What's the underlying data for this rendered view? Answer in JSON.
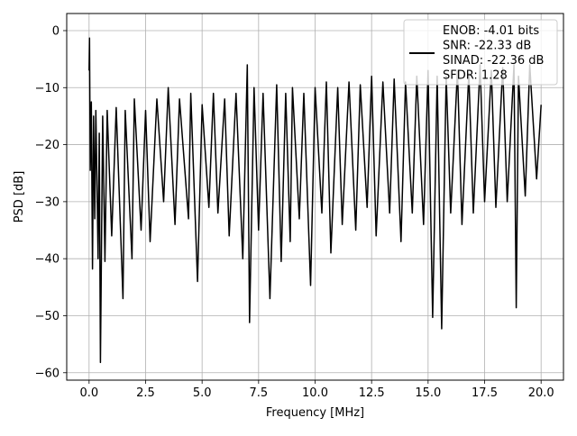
{
  "chart_data": {
    "type": "line",
    "title": "",
    "xlabel": "Frequency [MHz]",
    "ylabel": "PSD [dB]",
    "xlim": [
      -0.99,
      20.99
    ],
    "ylim": [
      -61.3,
      3.0
    ],
    "xticks": [
      0.0,
      2.5,
      5.0,
      7.5,
      10.0,
      12.5,
      15.0,
      17.5,
      20.0
    ],
    "xtick_labels": [
      "0.0",
      "2.5",
      "5.0",
      "7.5",
      "10.0",
      "12.5",
      "15.0",
      "17.5",
      "20.0"
    ],
    "yticks": [
      0,
      -10,
      -20,
      -30,
      -40,
      -50,
      -60
    ],
    "ytick_labels": [
      "0",
      "−10",
      "−20",
      "−30",
      "−40",
      "−50",
      "−60"
    ],
    "grid": true,
    "legend_position": "top-right",
    "legend_lines": [
      "ENOB: -4.01 bits",
      "SNR: -22.33 dB",
      "SINAD: -22.36 dB",
      "SFDR: 1.28"
    ],
    "series": [
      {
        "color": "#000000",
        "description": "noisy power spectral density, approx. 0-20 MHz",
        "x": [
          0.0,
          0.02,
          0.05,
          0.1,
          0.15,
          0.2,
          0.25,
          0.3,
          0.35,
          0.4,
          0.45,
          0.5,
          0.6,
          0.7,
          0.8,
          1.0,
          1.2,
          1.5,
          1.6,
          1.9,
          2.0,
          2.3,
          2.5,
          2.7,
          3.0,
          3.3,
          3.5,
          3.8,
          4.0,
          4.4,
          4.5,
          4.8,
          5.0,
          5.3,
          5.5,
          5.7,
          6.0,
          6.2,
          6.5,
          6.8,
          7.0,
          7.1,
          7.3,
          7.5,
          7.7,
          8.0,
          8.3,
          8.5,
          8.7,
          8.9,
          9.0,
          9.3,
          9.5,
          9.8,
          10.0,
          10.3,
          10.5,
          10.7,
          11.0,
          11.2,
          11.5,
          11.8,
          12.0,
          12.3,
          12.5,
          12.7,
          13.0,
          13.3,
          13.5,
          13.8,
          14.0,
          14.3,
          14.5,
          14.8,
          15.0,
          15.2,
          15.4,
          15.6,
          15.8,
          16.0,
          16.3,
          16.5,
          16.8,
          17.0,
          17.3,
          17.5,
          17.8,
          18.0,
          18.3,
          18.5,
          18.8,
          18.9,
          19.0,
          19.3,
          19.5,
          19.8,
          20.0
        ],
        "y": [
          -7.0,
          -1.3,
          -24.5,
          -12.5,
          -41.8,
          -15.0,
          -33.0,
          -14.0,
          -27.0,
          -40.0,
          -18.0,
          -58.2,
          -15.0,
          -40.5,
          -14.0,
          -36.0,
          -13.5,
          -47.0,
          -14.0,
          -40.0,
          -12.0,
          -35.0,
          -14.0,
          -37.0,
          -12.0,
          -30.0,
          -10.0,
          -34.0,
          -12.0,
          -33.0,
          -11.0,
          -44.0,
          -13.0,
          -31.0,
          -11.0,
          -32.0,
          -12.0,
          -36.0,
          -11.0,
          -40.0,
          -6.0,
          -51.2,
          -10.0,
          -35.0,
          -11.0,
          -47.0,
          -9.5,
          -40.5,
          -11.0,
          -37.0,
          -10.0,
          -33.0,
          -11.0,
          -44.7,
          -10.0,
          -32.0,
          -9.0,
          -39.0,
          -10.0,
          -34.0,
          -9.0,
          -35.0,
          -9.5,
          -31.0,
          -8.0,
          -36.0,
          -9.0,
          -32.0,
          -8.5,
          -37.0,
          -9.0,
          -32.0,
          -8.0,
          -34.0,
          -7.0,
          -50.3,
          -8.0,
          -52.3,
          -8.0,
          -32.0,
          -7.0,
          -34.0,
          -7.5,
          -32.0,
          -6.0,
          -30.0,
          -7.0,
          -31.0,
          -6.5,
          -30.0,
          -6.0,
          -48.6,
          -8.0,
          -29.0,
          -6.0,
          -26.0,
          -13.0
        ]
      }
    ]
  }
}
